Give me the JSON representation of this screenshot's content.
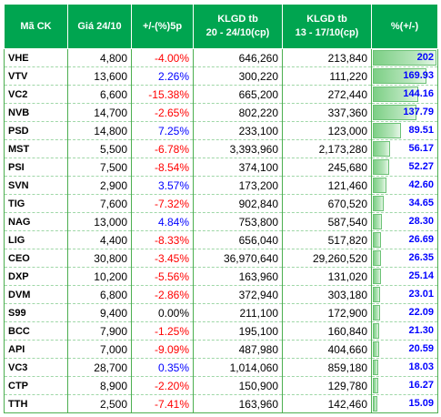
{
  "headers": {
    "symbol": "Mã CK",
    "price": "Giá 24/10",
    "change": "+/-(%)5p",
    "vol_recent_line1": "KLGD tb",
    "vol_recent_line2": "20 - 24/10(cp)",
    "vol_prev_line1": "KLGD tb",
    "vol_prev_line2": "13 - 17/10(cp)",
    "pct_change": "%(+/-)"
  },
  "colors": {
    "header_bg": "#00a550",
    "negative": "#ff0000",
    "positive": "#0000ff",
    "bar": "#7ccf85"
  },
  "rows": [
    {
      "symbol": "VHE",
      "price": "4,800",
      "change": "-4.00%",
      "vol_recent": "646,260",
      "vol_prev": "213,840",
      "pct": "202",
      "pct_value": 202
    },
    {
      "symbol": "VTV",
      "price": "13,600",
      "change": "2.26%",
      "vol_recent": "300,220",
      "vol_prev": "111,220",
      "pct": "169.93",
      "pct_value": 169.93
    },
    {
      "symbol": "VC2",
      "price": "6,600",
      "change": "-15.38%",
      "vol_recent": "665,200",
      "vol_prev": "272,440",
      "pct": "144.16",
      "pct_value": 144.16
    },
    {
      "symbol": "NVB",
      "price": "14,700",
      "change": "-2.65%",
      "vol_recent": "802,220",
      "vol_prev": "337,360",
      "pct": "137.79",
      "pct_value": 137.79
    },
    {
      "symbol": "PSD",
      "price": "14,800",
      "change": "7.25%",
      "vol_recent": "233,100",
      "vol_prev": "123,000",
      "pct": "89.51",
      "pct_value": 89.51
    },
    {
      "symbol": "MST",
      "price": "5,500",
      "change": "-6.78%",
      "vol_recent": "3,393,960",
      "vol_prev": "2,173,280",
      "pct": "56.17",
      "pct_value": 56.17
    },
    {
      "symbol": "PSI",
      "price": "7,500",
      "change": "-8.54%",
      "vol_recent": "374,100",
      "vol_prev": "245,680",
      "pct": "52.27",
      "pct_value": 52.27
    },
    {
      "symbol": "SVN",
      "price": "2,900",
      "change": "3.57%",
      "vol_recent": "173,200",
      "vol_prev": "121,460",
      "pct": "42.60",
      "pct_value": 42.6
    },
    {
      "symbol": "TIG",
      "price": "7,600",
      "change": "-7.32%",
      "vol_recent": "902,840",
      "vol_prev": "670,520",
      "pct": "34.65",
      "pct_value": 34.65
    },
    {
      "symbol": "NAG",
      "price": "13,000",
      "change": "4.84%",
      "vol_recent": "753,800",
      "vol_prev": "587,540",
      "pct": "28.30",
      "pct_value": 28.3
    },
    {
      "symbol": "LIG",
      "price": "4,400",
      "change": "-8.33%",
      "vol_recent": "656,040",
      "vol_prev": "517,820",
      "pct": "26.69",
      "pct_value": 26.69
    },
    {
      "symbol": "CEO",
      "price": "30,800",
      "change": "-3.45%",
      "vol_recent": "36,970,640",
      "vol_prev": "29,260,520",
      "pct": "26.35",
      "pct_value": 26.35
    },
    {
      "symbol": "DXP",
      "price": "10,200",
      "change": "-5.56%",
      "vol_recent": "163,960",
      "vol_prev": "131,020",
      "pct": "25.14",
      "pct_value": 25.14
    },
    {
      "symbol": "DVM",
      "price": "6,800",
      "change": "-2.86%",
      "vol_recent": "372,940",
      "vol_prev": "303,180",
      "pct": "23.01",
      "pct_value": 23.01
    },
    {
      "symbol": "S99",
      "price": "9,400",
      "change": "0.00%",
      "vol_recent": "211,100",
      "vol_prev": "172,900",
      "pct": "22.09",
      "pct_value": 22.09
    },
    {
      "symbol": "BCC",
      "price": "7,900",
      "change": "-1.25%",
      "vol_recent": "195,100",
      "vol_prev": "160,840",
      "pct": "21.30",
      "pct_value": 21.3
    },
    {
      "symbol": "API",
      "price": "7,000",
      "change": "-9.09%",
      "vol_recent": "487,980",
      "vol_prev": "404,660",
      "pct": "20.59",
      "pct_value": 20.59
    },
    {
      "symbol": "VC3",
      "price": "28,700",
      "change": "0.35%",
      "vol_recent": "1,014,060",
      "vol_prev": "859,180",
      "pct": "18.03",
      "pct_value": 18.03
    },
    {
      "symbol": "CTP",
      "price": "8,900",
      "change": "-2.20%",
      "vol_recent": "150,900",
      "vol_prev": "129,780",
      "pct": "16.27",
      "pct_value": 16.27
    },
    {
      "symbol": "TTH",
      "price": "2,500",
      "change": "-7.41%",
      "vol_recent": "163,960",
      "vol_prev": "142,460",
      "pct": "15.09",
      "pct_value": 15.09
    }
  ]
}
